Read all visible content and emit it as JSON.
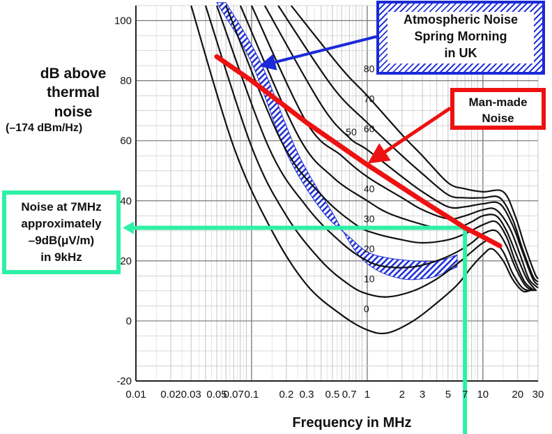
{
  "axes": {
    "y_label_lines": [
      "dB above",
      "thermal",
      "noise"
    ],
    "y_label_sub": "(–174 dBm/Hz)",
    "x_label": "Frequency in MHz"
  },
  "annotations": {
    "atmospheric": {
      "lines": [
        "Atmospheric Noise",
        "Spring  Morning",
        "in UK"
      ],
      "color": "#1a2ad8"
    },
    "man_made": {
      "lines": [
        "Man-made",
        "Noise"
      ],
      "color": "#ee1111"
    },
    "noise_at": {
      "lines": [
        "Noise at 7MHz",
        "approximately",
        "–9dB(μV/m)",
        "in 9kHz"
      ],
      "color": "#2ef0a6"
    }
  },
  "chart_data": {
    "type": "line",
    "x_scale": "log",
    "xlim": [
      0.01,
      30
    ],
    "ylim": [
      -20,
      105
    ],
    "x_ticks": [
      {
        "v": 0.01,
        "label": "0.01"
      },
      {
        "v": 0.02,
        "label": "0.02"
      },
      {
        "v": 0.03,
        "label": "0.03"
      },
      {
        "v": 0.05,
        "label": "0.05"
      },
      {
        "v": 0.07,
        "label": "0.07"
      },
      {
        "v": 0.1,
        "label": "0.1"
      },
      {
        "v": 0.2,
        "label": "0.2"
      },
      {
        "v": 0.3,
        "label": "0.3"
      },
      {
        "v": 0.5,
        "label": "0.5"
      },
      {
        "v": 0.7,
        "label": "0.7"
      },
      {
        "v": 1,
        "label": "1"
      },
      {
        "v": 2,
        "label": "2"
      },
      {
        "v": 3,
        "label": "3"
      },
      {
        "v": 5,
        "label": "5"
      },
      {
        "v": 7,
        "label": "7"
      },
      {
        "v": 10,
        "label": "10"
      },
      {
        "v": 20,
        "label": "20"
      },
      {
        "v": 30,
        "label": "30"
      }
    ],
    "y_ticks": [
      {
        "v": -20,
        "label": "-20"
      },
      {
        "v": 0,
        "label": "0"
      },
      {
        "v": 20,
        "label": "20"
      },
      {
        "v": 40,
        "label": "40"
      },
      {
        "v": 60,
        "label": "60"
      },
      {
        "v": 80,
        "label": "80"
      },
      {
        "v": 100,
        "label": "100"
      }
    ],
    "grid": true,
    "series": [
      {
        "name": "0",
        "label_pos": [
          1.0,
          4
        ],
        "points": [
          [
            0.03,
            105
          ],
          [
            0.07,
            58
          ],
          [
            0.15,
            30
          ],
          [
            0.3,
            12
          ],
          [
            0.6,
            2
          ],
          [
            1.0,
            -3
          ],
          [
            1.5,
            -4
          ],
          [
            2.5,
            0
          ],
          [
            4,
            6
          ],
          [
            6,
            12
          ],
          [
            8,
            18
          ],
          [
            10,
            22
          ],
          [
            12,
            24
          ],
          [
            15,
            20
          ],
          [
            18,
            14
          ],
          [
            22,
            10
          ],
          [
            25,
            10
          ]
        ]
      },
      {
        "name": "10",
        "label_pos": [
          1.0,
          14
        ],
        "points": [
          [
            0.04,
            105
          ],
          [
            0.1,
            58
          ],
          [
            0.2,
            35
          ],
          [
            0.4,
            20
          ],
          [
            0.7,
            12
          ],
          [
            1.0,
            9
          ],
          [
            1.5,
            8
          ],
          [
            2.5,
            10
          ],
          [
            4,
            14
          ],
          [
            6,
            19
          ],
          [
            8,
            23
          ],
          [
            10,
            26
          ],
          [
            12,
            27
          ],
          [
            15,
            23
          ],
          [
            18,
            16
          ],
          [
            22,
            11
          ],
          [
            26,
            10
          ]
        ]
      },
      {
        "name": "20",
        "label_pos": [
          1.0,
          24
        ],
        "points": [
          [
            0.05,
            105
          ],
          [
            0.14,
            58
          ],
          [
            0.3,
            38
          ],
          [
            0.6,
            26
          ],
          [
            1.0,
            20
          ],
          [
            1.5,
            18
          ],
          [
            2.5,
            18
          ],
          [
            4,
            20
          ],
          [
            6,
            23
          ],
          [
            8,
            26
          ],
          [
            10,
            29
          ],
          [
            13,
            30
          ],
          [
            16,
            25
          ],
          [
            19,
            18
          ],
          [
            23,
            12
          ],
          [
            27,
            10
          ]
        ]
      },
      {
        "name": "30",
        "label_pos": [
          1.0,
          34
        ],
        "points": [
          [
            0.06,
            105
          ],
          [
            0.18,
            60
          ],
          [
            0.4,
            42
          ],
          [
            0.8,
            32
          ],
          [
            1.2,
            29
          ],
          [
            2,
            27
          ],
          [
            3,
            26
          ],
          [
            5,
            27
          ],
          [
            7,
            29
          ],
          [
            10,
            32
          ],
          [
            13,
            33
          ],
          [
            16,
            28
          ],
          [
            19,
            20
          ],
          [
            23,
            13
          ],
          [
            28,
            10
          ]
        ]
      },
      {
        "name": "40",
        "label_pos": [
          1.0,
          44
        ],
        "points": [
          [
            0.08,
            105
          ],
          [
            0.25,
            62
          ],
          [
            0.5,
            48
          ],
          [
            1.0,
            40
          ],
          [
            1.5,
            36
          ],
          [
            2.5,
            33
          ],
          [
            4,
            31
          ],
          [
            6,
            31
          ],
          [
            8,
            33
          ],
          [
            10,
            35
          ],
          [
            13,
            35
          ],
          [
            16,
            30
          ],
          [
            20,
            21
          ],
          [
            24,
            14
          ],
          [
            29,
            10
          ]
        ]
      },
      {
        "name": "50",
        "label_pos": [
          0.7,
          63
        ],
        "points": [
          [
            0.1,
            105
          ],
          [
            0.3,
            66
          ],
          [
            0.6,
            55
          ],
          [
            1.0,
            48
          ],
          [
            2,
            41
          ],
          [
            3,
            37
          ],
          [
            5,
            34
          ],
          [
            7,
            35
          ],
          [
            10,
            37
          ],
          [
            13,
            37
          ],
          [
            17,
            31
          ],
          [
            21,
            22
          ],
          [
            25,
            14
          ],
          [
            30,
            11
          ]
        ]
      },
      {
        "name": "60",
        "label_pos": [
          1.0,
          64
        ],
        "points": [
          [
            0.13,
            105
          ],
          [
            0.4,
            72
          ],
          [
            0.7,
            61
          ],
          [
            1.0,
            57
          ],
          [
            2,
            48
          ],
          [
            3,
            43
          ],
          [
            5,
            38
          ],
          [
            7,
            38
          ],
          [
            10,
            39
          ],
          [
            14,
            39
          ],
          [
            18,
            32
          ],
          [
            22,
            23
          ],
          [
            27,
            14
          ],
          [
            30,
            12
          ]
        ]
      },
      {
        "name": "70",
        "label_pos": [
          1.0,
          74
        ],
        "points": [
          [
            0.17,
            105
          ],
          [
            0.5,
            78
          ],
          [
            1.0,
            66
          ],
          [
            2,
            55
          ],
          [
            3,
            49
          ],
          [
            5,
            42
          ],
          [
            7,
            41
          ],
          [
            10,
            41
          ],
          [
            14,
            41
          ],
          [
            18,
            34
          ],
          [
            22,
            24
          ],
          [
            27,
            15
          ],
          [
            30,
            13
          ]
        ]
      },
      {
        "name": "80",
        "label_pos": [
          1.0,
          84
        ],
        "points": [
          [
            0.22,
            105
          ],
          [
            0.6,
            84
          ],
          [
            1.0,
            75
          ],
          [
            2,
            62
          ],
          [
            3,
            55
          ],
          [
            5,
            46
          ],
          [
            7,
            44
          ],
          [
            10,
            43
          ],
          [
            15,
            43
          ],
          [
            19,
            35
          ],
          [
            23,
            25
          ],
          [
            28,
            16
          ],
          [
            30,
            14
          ]
        ]
      }
    ],
    "atmospheric_band": {
      "upper": [
        [
          0.05,
          106
        ],
        [
          0.1,
          86
        ],
        [
          0.2,
          56
        ],
        [
          0.4,
          37
        ],
        [
          0.7,
          28
        ],
        [
          1.0,
          23
        ],
        [
          1.5,
          21
        ],
        [
          2.5,
          20
        ],
        [
          4,
          20
        ],
        [
          6,
          22
        ]
      ],
      "lower": [
        [
          0.06,
          106
        ],
        [
          0.12,
          86
        ],
        [
          0.25,
          56
        ],
        [
          0.5,
          36
        ],
        [
          0.8,
          23
        ],
        [
          1.2,
          17
        ],
        [
          2,
          14
        ],
        [
          3,
          14
        ],
        [
          4,
          15
        ],
        [
          6,
          18
        ]
      ]
    },
    "man_made_line": [
      [
        0.05,
        88
      ],
      [
        0.1,
        80
      ],
      [
        0.3,
        66
      ],
      [
        1.0,
        52
      ],
      [
        3,
        40
      ],
      [
        7,
        31
      ],
      [
        10,
        28
      ],
      [
        14,
        25
      ]
    ],
    "marker_frequency_mhz": 7,
    "marker_level_db": 31
  }
}
